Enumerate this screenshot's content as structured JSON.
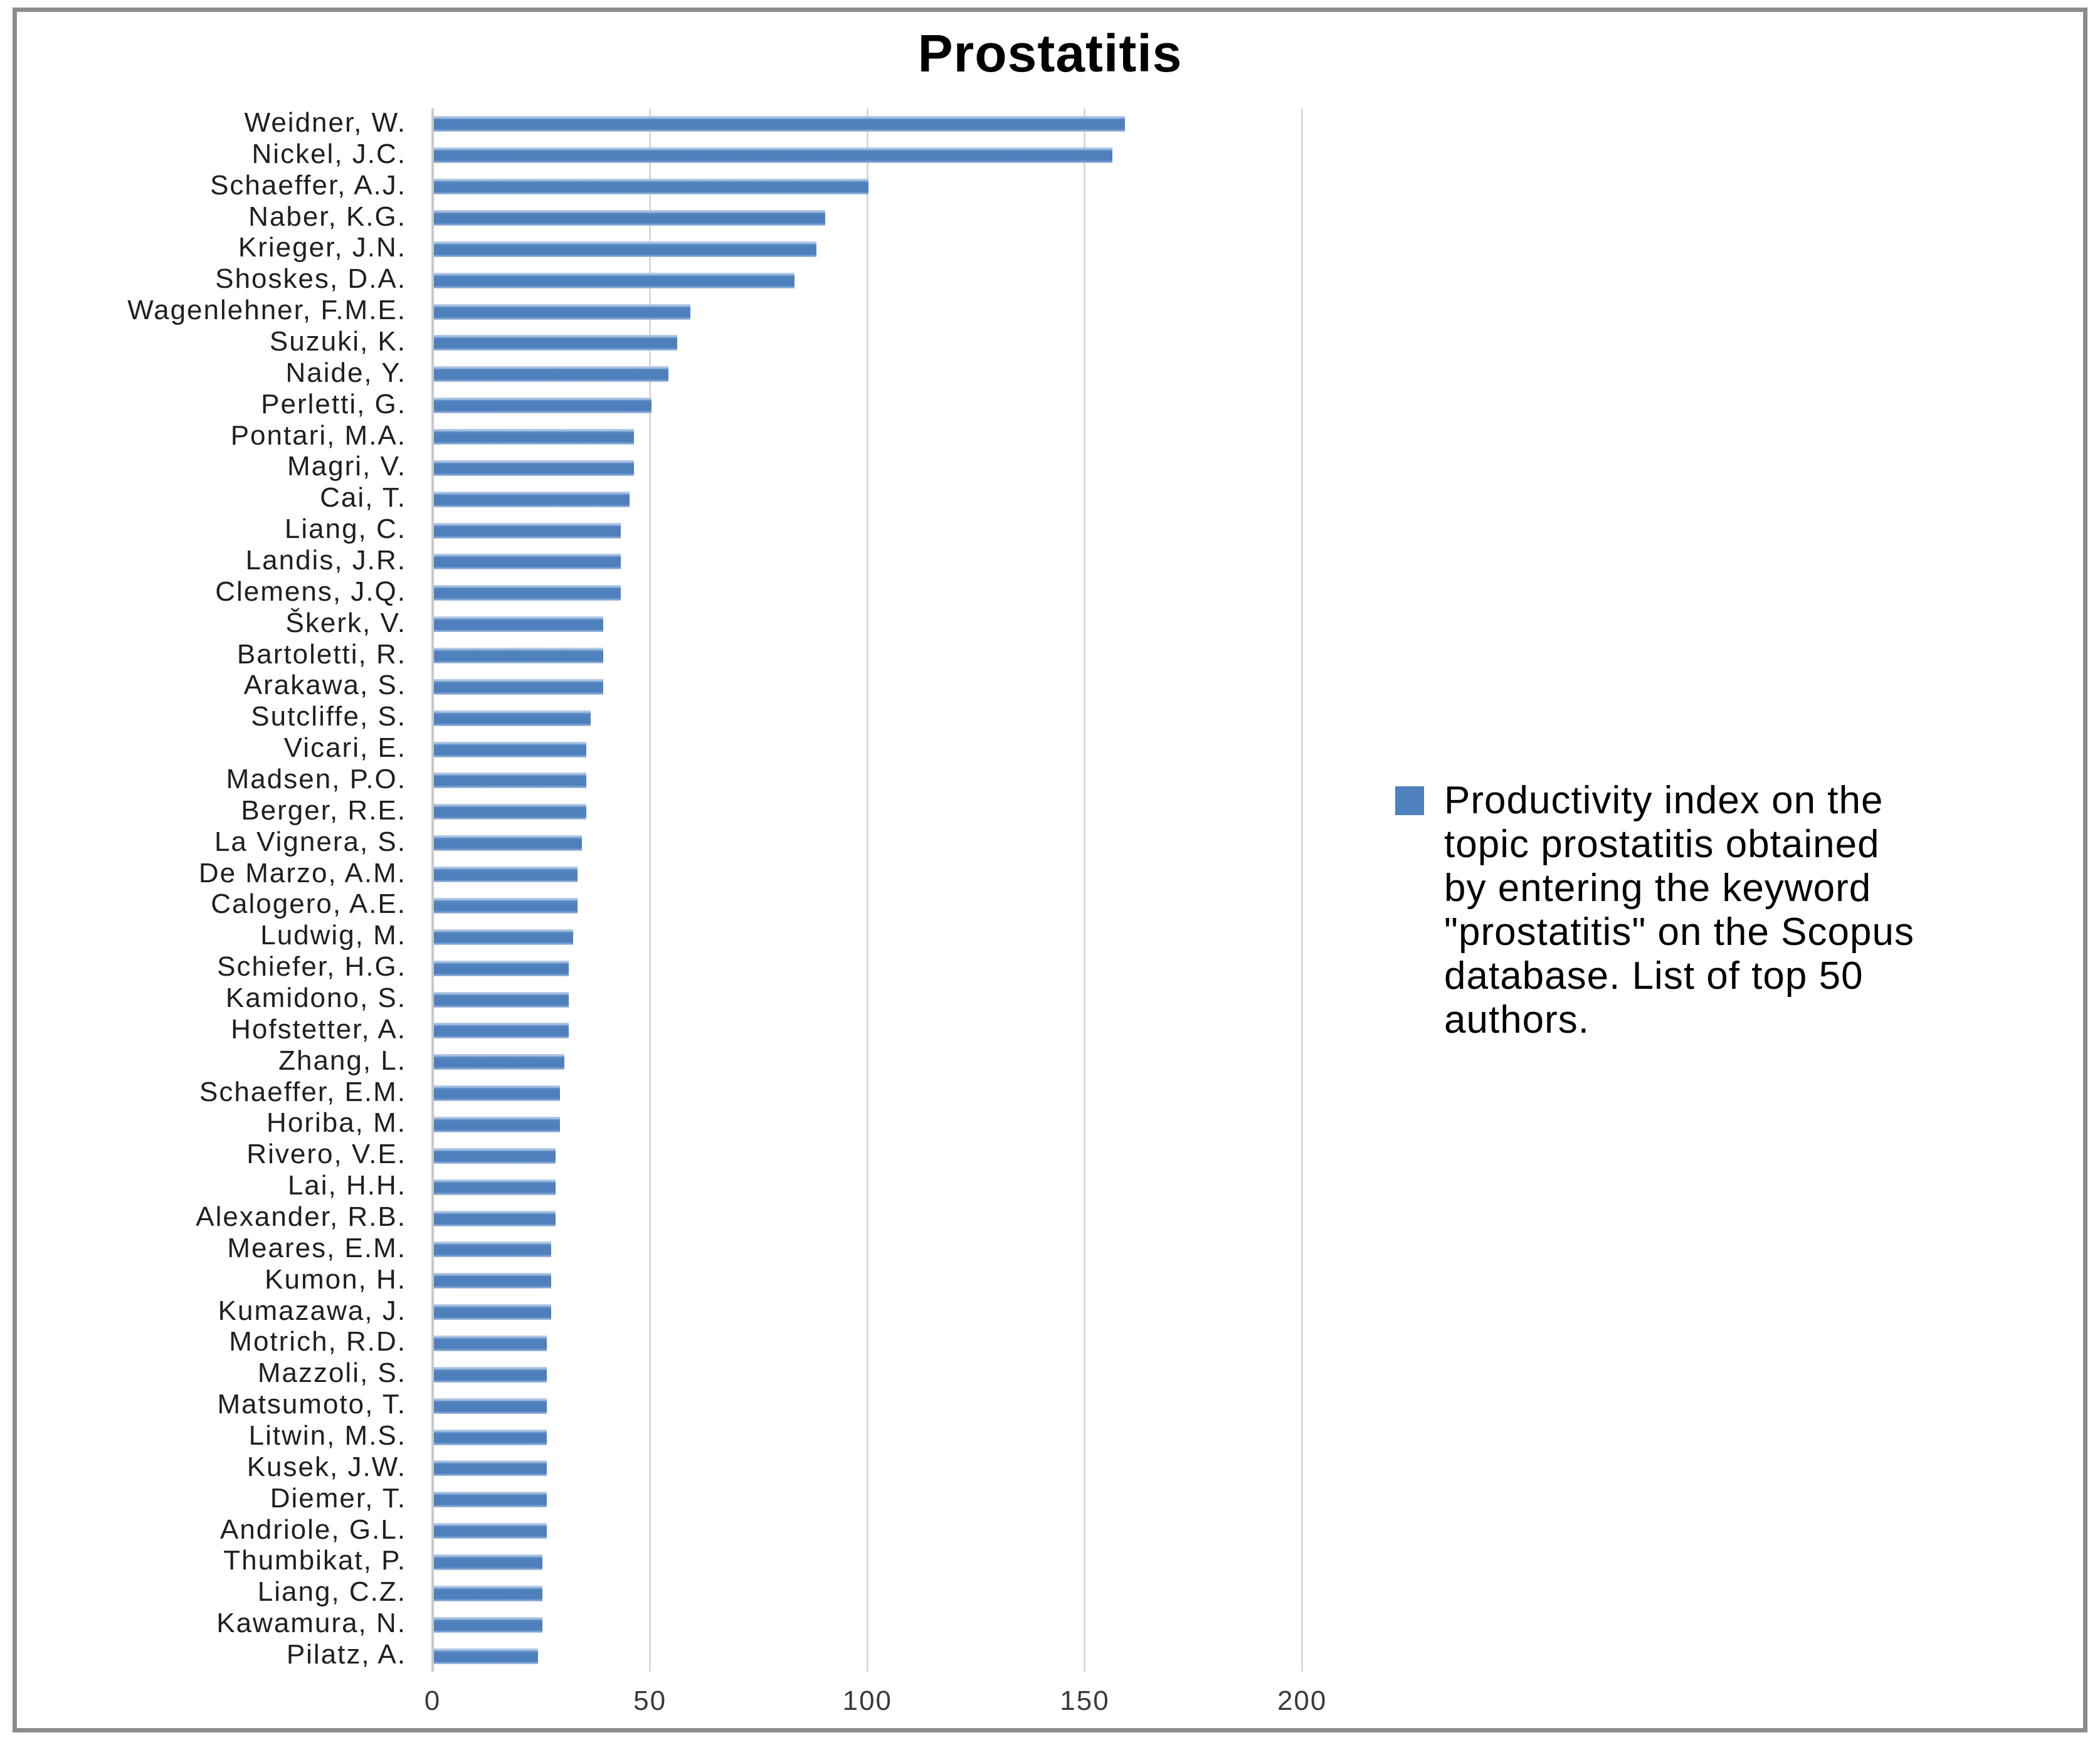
{
  "window": {
    "title": "Prostatitis"
  },
  "chart_data": {
    "type": "bar",
    "orientation": "horizontal",
    "title": "Prostatitis",
    "xlabel": "",
    "ylabel": "",
    "xlim": [
      0,
      218
    ],
    "x_ticks": [
      0,
      50,
      100,
      150,
      200
    ],
    "grid": true,
    "legend_position": "right",
    "bar_color": "#4F81BD",
    "series_name": "Productivity index on the topic prostatitis obtained by entering the keyword \"prostatitis\" on the Scopus database. List of top 50 authors.",
    "categories": [
      "Weidner, W.",
      "Nickel, J.C.",
      "Schaeffer, A.J.",
      "Naber, K.G.",
      "Krieger, J.N.",
      "Shoskes, D.A.",
      "Wagenlehner, F.M.E.",
      "Suzuki, K.",
      "Naide, Y.",
      "Perletti, G.",
      "Pontari, M.A.",
      "Magri, V.",
      "Cai, T.",
      "Liang, C.",
      "Landis, J.R.",
      "Clemens, J.Q.",
      "Škerk, V.",
      "Bartoletti, R.",
      "Arakawa, S.",
      "Sutcliffe, S.",
      "Vicari, E.",
      "Madsen, P.O.",
      "Berger, R.E.",
      "La Vignera, S.",
      "De Marzo, A.M.",
      "Calogero, A.E.",
      "Ludwig, M.",
      "Schiefer, H.G.",
      "Kamidono, S.",
      "Hofstetter, A.",
      "Zhang, L.",
      "Schaeffer, E.M.",
      "Horiba, M.",
      "Rivero, V.E.",
      "Lai, H.H.",
      "Alexander, R.B.",
      "Meares, E.M.",
      "Kumon, H.",
      "Kumazawa, J.",
      "Motrich, R.D.",
      "Mazzoli, S.",
      "Matsumoto, T.",
      "Litwin, M.S.",
      "Kusek, J.W.",
      "Diemer, T.",
      "Andriole, G.L.",
      "Thumbikat, P.",
      "Liang, C.Z.",
      "Kawamura, N.",
      "Pilatz, A."
    ],
    "values": [
      159,
      156,
      100,
      90,
      88,
      83,
      59,
      56,
      54,
      50,
      46,
      46,
      45,
      43,
      43,
      43,
      39,
      39,
      39,
      36,
      35,
      35,
      35,
      34,
      33,
      33,
      32,
      31,
      31,
      31,
      30,
      29,
      29,
      28,
      28,
      28,
      27,
      27,
      27,
      26,
      26,
      26,
      26,
      26,
      26,
      26,
      25,
      25,
      25,
      24
    ]
  },
  "legend": {
    "marker_color": "#4F81BD",
    "lines": [
      "Productivity index on the",
      "topic prostatitis obtained",
      "by entering the keyword",
      "\"prostatitis\" on the Scopus",
      "database. List of top 50",
      "authors."
    ]
  },
  "colors": {
    "bar": "#4F81BD",
    "bar_highlight": "#A8C2E2",
    "gridline": "#D9D9D9",
    "axis_line": "#C8C8C8",
    "frame_border": "#8C8C8C",
    "text": "#1F1F1F"
  }
}
